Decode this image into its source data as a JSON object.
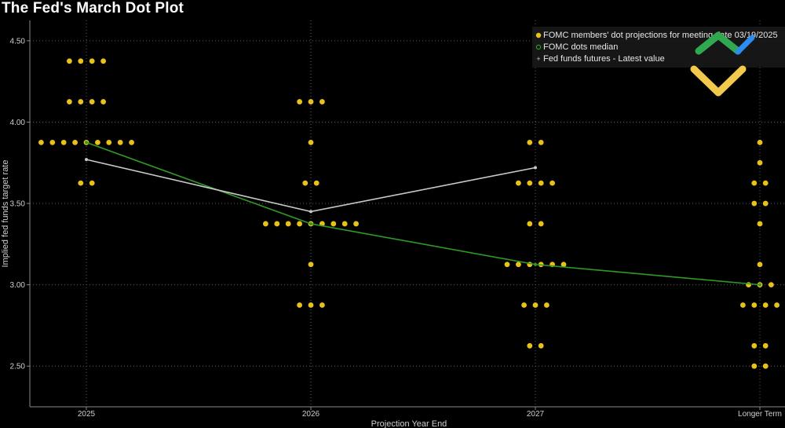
{
  "title": "The Fed's March Dot Plot",
  "colors": {
    "background": "#000000",
    "dots": "#e8c21a",
    "median": "#2e9a26",
    "futures": "#c8c8c8",
    "grid": "#5a5a5a",
    "axis": "#8a8a8a",
    "logo_green": "#2fa84f",
    "logo_yellow": "#f2c94c",
    "logo_blue": "#2d8cf0"
  },
  "chart_data": {
    "type": "scatter",
    "title": "The Fed's March Dot Plot",
    "xlabel": "Projection Year End",
    "ylabel": "Implied fed funds target rate",
    "categories": [
      "2025",
      "2026",
      "2027",
      "Longer Term"
    ],
    "ylim": [
      2.25,
      4.625
    ],
    "yticks": [
      "2.50",
      "3.00",
      "3.50",
      "4.00",
      "4.50"
    ],
    "grid": true,
    "legend_position": "top-right",
    "legend": [
      "FOMC members' dot projections for meeting date 03/19/2025",
      "FOMC dots median",
      "Fed funds futures - Latest value"
    ],
    "dots": [
      {
        "category": "2025",
        "levels": [
          {
            "rate": 4.375,
            "count": 4
          },
          {
            "rate": 4.125,
            "count": 4
          },
          {
            "rate": 3.875,
            "count": 9
          },
          {
            "rate": 3.625,
            "count": 2
          }
        ]
      },
      {
        "category": "2026",
        "levels": [
          {
            "rate": 4.125,
            "count": 3
          },
          {
            "rate": 3.875,
            "count": 1
          },
          {
            "rate": 3.625,
            "count": 2
          },
          {
            "rate": 3.375,
            "count": 9
          },
          {
            "rate": 3.125,
            "count": 1
          },
          {
            "rate": 2.875,
            "count": 3
          }
        ]
      },
      {
        "category": "2027",
        "levels": [
          {
            "rate": 3.875,
            "count": 2
          },
          {
            "rate": 3.625,
            "count": 4
          },
          {
            "rate": 3.375,
            "count": 2
          },
          {
            "rate": 3.125,
            "count": 6
          },
          {
            "rate": 2.875,
            "count": 3
          },
          {
            "rate": 2.625,
            "count": 2
          }
        ]
      },
      {
        "category": "Longer Term",
        "levels": [
          {
            "rate": 3.875,
            "count": 1
          },
          {
            "rate": 3.75,
            "count": 1
          },
          {
            "rate": 3.625,
            "count": 2
          },
          {
            "rate": 3.5,
            "count": 2
          },
          {
            "rate": 3.375,
            "count": 1
          },
          {
            "rate": 3.125,
            "count": 1
          },
          {
            "rate": 3.0,
            "count": 3
          },
          {
            "rate": 2.875,
            "count": 4
          },
          {
            "rate": 2.625,
            "count": 2
          },
          {
            "rate": 2.5,
            "count": 2
          }
        ]
      }
    ],
    "series": [
      {
        "name": "FOMC dots median",
        "categories": [
          "2025",
          "2026",
          "2027",
          "Longer Term"
        ],
        "values": [
          3.875,
          3.375,
          3.125,
          3.0
        ]
      },
      {
        "name": "Fed funds futures - Latest value",
        "categories": [
          "2025",
          "2026",
          "2027"
        ],
        "values": [
          3.77,
          3.45,
          3.72
        ]
      }
    ]
  }
}
